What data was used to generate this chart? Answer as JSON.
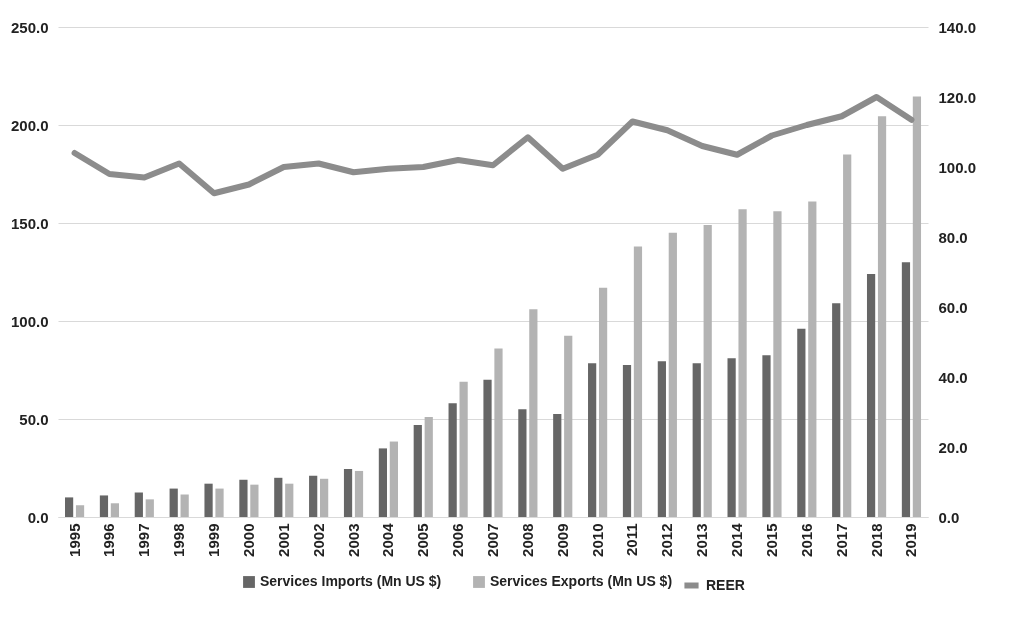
{
  "chart_data": {
    "type": "bar",
    "categories": [
      "1995",
      "1996",
      "1997",
      "1998",
      "1999",
      "2000",
      "2001",
      "2002",
      "2003",
      "2004",
      "2005",
      "2006",
      "2007",
      "2008",
      "2009",
      "2010",
      "2011",
      "2012",
      "2013",
      "2014",
      "2015",
      "2016",
      "2017",
      "2018",
      "2019"
    ],
    "series": [
      {
        "name": "Services Imports (Mn US $)",
        "color": "#666666",
        "values": [
          10,
          11,
          12.5,
          14.5,
          17,
          19,
          20,
          21,
          24.5,
          35,
          47,
          58,
          70,
          55,
          52.5,
          78.5,
          77.5,
          79.5,
          78.5,
          81,
          82.5,
          96,
          109,
          124,
          130
        ]
      },
      {
        "name": "Services Exports (Mn US $)",
        "color": "#b3b3b3",
        "values": [
          6,
          7,
          9,
          11.5,
          14.5,
          16.5,
          17,
          19.5,
          23.5,
          38.5,
          51,
          69,
          86,
          106,
          92.5,
          117,
          138,
          145,
          149,
          157,
          156,
          161,
          185,
          204.5,
          214.5
        ]
      },
      {
        "name": "REER",
        "type": "line",
        "axis": "y2",
        "color": "#8c8c8c",
        "values": [
          104,
          98,
          97,
          101,
          92.5,
          95,
          100,
          101,
          98.5,
          99.5,
          100,
          102,
          100.5,
          108.5,
          99.5,
          103.5,
          113,
          110.5,
          106,
          103.5,
          109,
          112,
          114.5,
          120,
          113.5
        ]
      }
    ],
    "ylim": [
      0,
      250
    ],
    "yticks": [
      {
        "value": 0,
        "label": "0.0"
      },
      {
        "value": 50,
        "label": "50.0"
      },
      {
        "value": 100,
        "label": "100.0"
      },
      {
        "value": 150,
        "label": "150.0"
      },
      {
        "value": 200,
        "label": "200.0"
      },
      {
        "value": 250,
        "label": "250.0"
      }
    ],
    "y2lim": [
      0,
      140
    ],
    "y2ticks": [
      {
        "value": 0,
        "label": "0.0"
      },
      {
        "value": 20,
        "label": "20.0"
      },
      {
        "value": 40,
        "label": "40.0"
      },
      {
        "value": 60,
        "label": "60.0"
      },
      {
        "value": 80,
        "label": "80.0"
      },
      {
        "value": 100,
        "label": "100.0"
      },
      {
        "value": 120,
        "label": "120.0"
      },
      {
        "value": 140,
        "label": "140.0"
      }
    ],
    "grid": "y",
    "legend": "bottom"
  }
}
